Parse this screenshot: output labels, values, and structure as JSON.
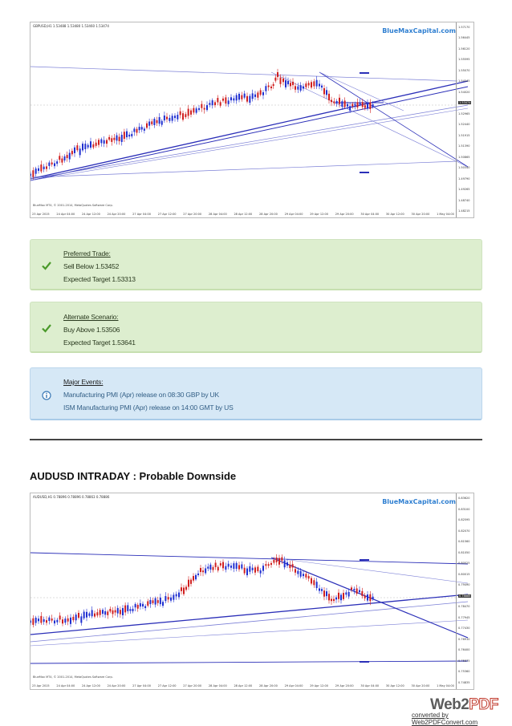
{
  "chart1": {
    "symbol_line": "GBPUSD,H1  1.53488 1.53480 1.53460 1.53474",
    "brand": "BlueMaxCapital.com",
    "copyright": "BlueMax MT4, © 2001-2014, MetaQuotes Software Corp.",
    "price_tag": "1.53474",
    "y_ticks": [
      "1.57170",
      "1.56445",
      "1.56120",
      "1.55595",
      "1.55070",
      "1.54545",
      "1.54020",
      "1.53474",
      "1.52965",
      "1.52440",
      "1.51915",
      "1.51390",
      "1.50865",
      "1.50340",
      "1.49790",
      "1.49265",
      "1.48740",
      "1.48215"
    ],
    "x_ticks": [
      "23 Apr 2015",
      "24 Apr 04:00",
      "24 Apr 12:00",
      "24 Apr 20:00",
      "27 Apr 04:00",
      "27 Apr 12:00",
      "27 Apr 20:00",
      "28 Apr 04:00",
      "28 Apr 12:00",
      "28 Apr 20:00",
      "29 Apr 04:00",
      "29 Apr 12:00",
      "29 Apr 20:00",
      "30 Apr 04:00",
      "30 Apr 12:00",
      "30 Apr 20:00",
      "1 May 04:00"
    ]
  },
  "preferred": {
    "title": "Preferred Trade:",
    "line1": "Sell Below 1.53452",
    "line2": "Expected Target  1.53313",
    "icon": "check-icon"
  },
  "alternate": {
    "title": "Alternate Scenario:",
    "line1": "Buy Above 1.53506",
    "line2": "Expected Target  1.53641",
    "icon": "check-icon"
  },
  "events": {
    "title": "Major Events:",
    "line1": "Manufacturing PMI (Apr) release on 08:30 GBP by UK",
    "line2": "ISM Manufacturing PMI (Apr) release on 14:00 GMT by US",
    "icon": "info-icon"
  },
  "section_title": "AUDUSD INTRADAY : Probable Downside",
  "chart2": {
    "symbol_line": "AUDUSD,H1  0.78896 0.78896 0.78863 0.78886",
    "brand": "BlueMaxCapital.com",
    "copyright": "BlueMax MT4, © 2001-2014, MetaQuotes Software Corp.",
    "price_tag": "0.78886",
    "y_ticks": [
      "0.83620",
      "0.83100",
      "0.82595",
      "0.82070",
      "0.81560",
      "0.81050",
      "0.80525",
      "0.80015",
      "0.79490",
      "0.78886",
      "0.78470",
      "0.77945",
      "0.77430",
      "0.76910",
      "0.76400",
      "0.75875",
      "0.75360",
      "0.74835"
    ],
    "x_ticks": [
      "23 Apr 2015",
      "24 Apr 04:00",
      "24 Apr 12:00",
      "24 Apr 20:00",
      "27 Apr 04:00",
      "27 Apr 12:00",
      "27 Apr 20:00",
      "28 Apr 04:00",
      "28 Apr 12:00",
      "28 Apr 20:00",
      "29 Apr 04:00",
      "29 Apr 12:00",
      "29 Apr 20:00",
      "30 Apr 04:00",
      "30 Apr 12:00",
      "30 Apr 20:00",
      "1 May 04:00"
    ]
  },
  "footer": {
    "logo_part1": "Web2",
    "logo_part2": "PDF",
    "converted": "converted by Web2PDFConvert.com"
  },
  "colors": {
    "bull": "#1f2fd0",
    "bear": "#d01f1f",
    "trend": "#2b2fb8",
    "green_box": "#ddeecf",
    "blue_box": "#d6e8f6"
  }
}
